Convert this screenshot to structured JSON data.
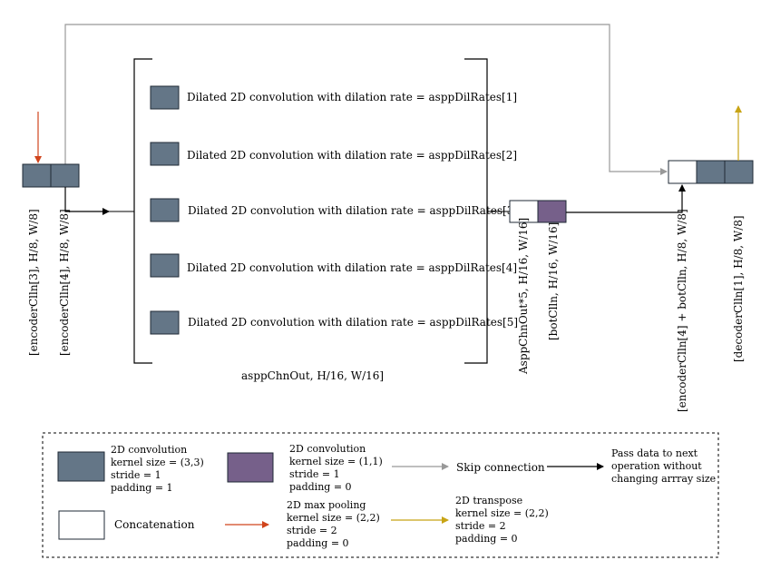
{
  "colors": {
    "conv3": "#647687",
    "conv1": "#76608a",
    "concat": "#ffffff",
    "stroke": "#1f2a36",
    "skip": "#999999",
    "maxpool": "#d0441c",
    "transpose": "#c8a415",
    "pass": "#000000"
  },
  "input_labels": [
    "[encoderClln[3], H/8, W/8]",
    "[encoderClln[4], H/8, W/8]"
  ],
  "aspp_rows": [
    "Dilated 2D convolution with dilation rate = asppDilRates[1]",
    "Dilated 2D convolution with dilation rate = asppDilRates[2]",
    "Dilated 2D convolution with dilation rate = asppDilRates[3]",
    "Dilated 2D convolution with dilation rate = asppDilRates[4]",
    "Dilated 2D convolution with dilation rate = asppDilRates[5]"
  ],
  "aspp_output_label": "asppChnOut, H/16, W/16]",
  "mid_labels": [
    "AsppChnOut*5, H/16, W/16]",
    "[botClln, H/16, W/16]"
  ],
  "right_labels": [
    "[encoderClln[4] + botClln, H/8, W/8]",
    "[decoderClln[1], H/8, W/8]"
  ],
  "legend": {
    "conv3": {
      "title": "2D convolution",
      "lines": [
        "kernel size = (3,3)",
        "stride = 1",
        "padding = 1"
      ]
    },
    "conv1": {
      "title": "2D convolution",
      "lines": [
        "kernel size = (1,1)",
        "stride = 1",
        "padding = 0"
      ]
    },
    "skip": "Skip connection",
    "pass": [
      "Pass data to next",
      "operation without",
      "changing arrray size"
    ],
    "concat": "Concatenation",
    "maxpool": {
      "title": "2D max pooling",
      "lines": [
        "kernel size = (2,2)",
        "stride = 2",
        "padding = 0"
      ]
    },
    "transpose": {
      "title": "2D transpose",
      "lines": [
        "kernel size = (2,2)",
        "stride = 2",
        "padding = 0"
      ]
    }
  }
}
